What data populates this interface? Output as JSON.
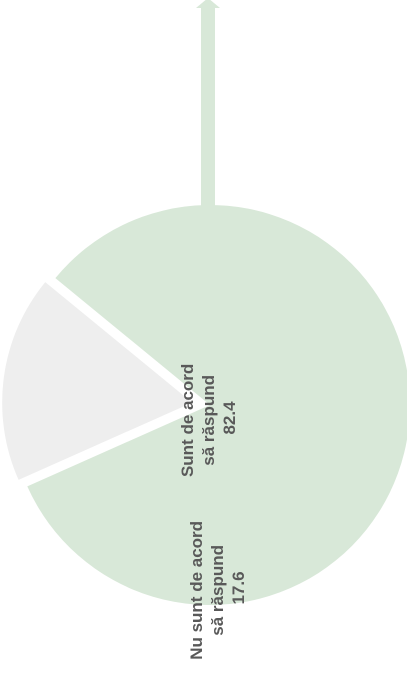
{
  "chart_data": {
    "type": "pie",
    "categories": [
      "Sunt de acord să răspund",
      "Nu sunt de acord să răspund"
    ],
    "values": [
      82.4,
      17.6
    ],
    "colors": [
      "#d8e8d8",
      "#eeeeee"
    ],
    "legend": "none",
    "labels": [
      {
        "lines": [
          "Sunt de acord",
          "să răspund"
        ],
        "value": "82.4"
      },
      {
        "lines": [
          "Nu sunt de acord",
          "să răspund"
        ],
        "value": "17.6"
      }
    ]
  }
}
